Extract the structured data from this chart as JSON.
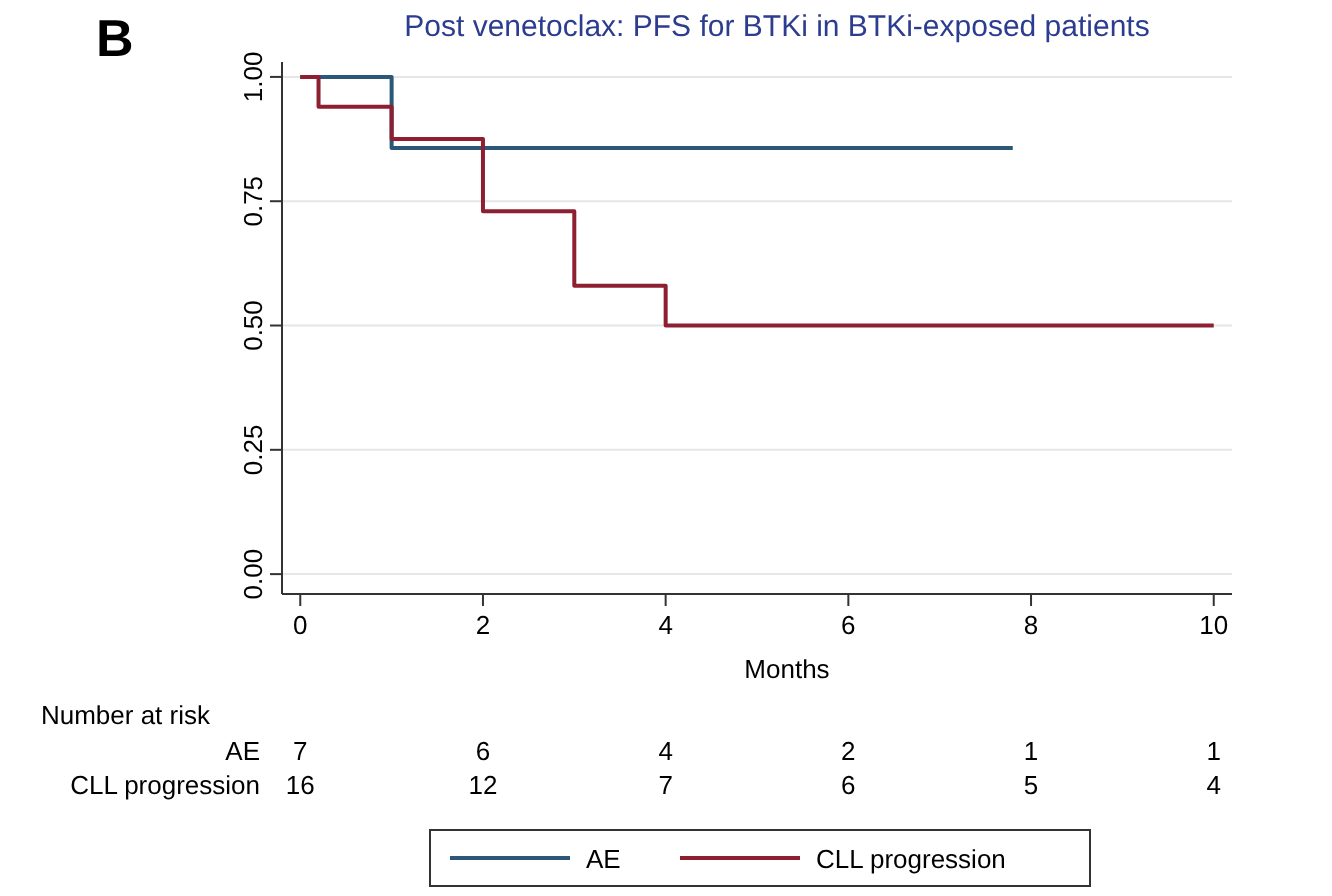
{
  "chart_data": {
    "type": "step",
    "title": "Post venetoclax: PFS for BTKi in BTKi-exposed patients",
    "xlabel": "Months",
    "series": [
      {
        "name": "AE",
        "color": "#2b5878",
        "x": [
          0,
          1,
          7.8
        ],
        "values": [
          1,
          0.857,
          0.857
        ]
      },
      {
        "name": "CLL progression",
        "color": "#8e1f30",
        "x": [
          0,
          0.2,
          1,
          2,
          3,
          4,
          10
        ],
        "values": [
          1,
          0.94,
          0.875,
          0.73,
          0.58,
          0.5,
          0.5
        ]
      }
    ],
    "xlim": [
      -0.2,
      10.2
    ],
    "xticks": [
      0,
      2,
      4,
      6,
      8,
      10
    ],
    "ylim": [
      -0.04,
      1.03
    ],
    "yticks": [
      {
        "value": 0,
        "label": "0.00"
      },
      {
        "value": 0.25,
        "label": "0.25"
      },
      {
        "value": 0.5,
        "label": "0.50"
      },
      {
        "value": 0.75,
        "label": "0.75"
      },
      {
        "value": 1,
        "label": "1.00"
      }
    ],
    "grid": "y",
    "legend": "bottom",
    "line_style": "solid",
    "annotations": [
      "B",
      "Number at risk",
      "AE",
      "7",
      "6",
      "4",
      "2",
      "1",
      "1",
      "CLL progression",
      "16",
      "12",
      "7",
      "6",
      "5",
      "4"
    ]
  }
}
